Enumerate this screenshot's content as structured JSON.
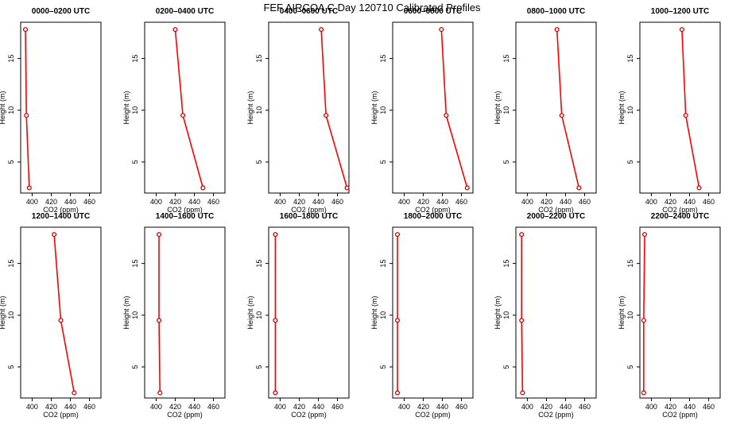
{
  "title": "FEF AIRCOA C  Day 120710  Calibrated Profiles",
  "colors": {
    "line": "#ff0000",
    "marker": "#cc0000",
    "axis": "#000000"
  },
  "chart_data": {
    "type": "line",
    "xlabel": "CO2 (ppm)",
    "ylabel": "Height (m)",
    "xlim": [
      388,
      472
    ],
    "ylim": [
      2,
      18.5
    ],
    "xticks": [
      400,
      420,
      440,
      460
    ],
    "yticks": [
      5,
      10,
      15
    ],
    "heights": [
      2.5,
      9.5,
      17.8
    ],
    "panels": [
      {
        "title": "0000–0200 UTC",
        "co2": [
          397,
          394,
          393
        ]
      },
      {
        "title": "0200–0400 UTC",
        "co2": [
          449,
          428,
          420
        ]
      },
      {
        "title": "0400–0600 UTC",
        "co2": [
          470,
          448,
          443
        ]
      },
      {
        "title": "0600–0800 UTC",
        "co2": [
          466,
          444,
          439
        ]
      },
      {
        "title": "0800–1000 UTC",
        "co2": [
          454,
          436,
          431
        ]
      },
      {
        "title": "1000–1200 UTC",
        "co2": [
          450,
          436,
          432
        ]
      },
      {
        "title": "1200–1400 UTC",
        "co2": [
          444,
          430,
          423
        ]
      },
      {
        "title": "1400–1600 UTC",
        "co2": [
          404,
          403,
          403
        ]
      },
      {
        "title": "1600–1800 UTC",
        "co2": [
          395,
          395,
          395
        ]
      },
      {
        "title": "1800–2000 UTC",
        "co2": [
          393,
          393,
          393
        ]
      },
      {
        "title": "2000–2200 UTC",
        "co2": [
          395,
          394,
          394
        ]
      },
      {
        "title": "2200–2400 UTC",
        "co2": [
          392,
          392,
          393
        ]
      }
    ]
  }
}
